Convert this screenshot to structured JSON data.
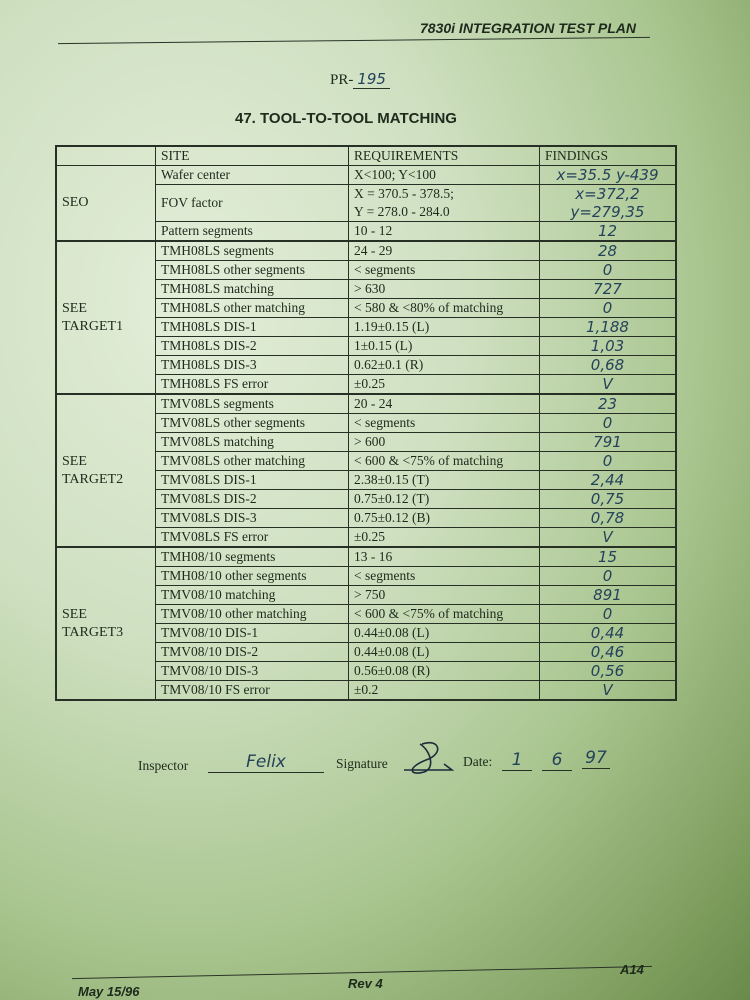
{
  "header": {
    "title": "7830i INTEGRATION TEST PLAN"
  },
  "pr": {
    "prefix": "PR-",
    "number": "195"
  },
  "section_title": "47. TOOL-TO-TOOL MATCHING",
  "table": {
    "columns": [
      "",
      "SITE",
      "REQUIREMENTS",
      "FINDINGS"
    ],
    "groups": [
      {
        "label": "SEO",
        "rows": [
          {
            "site": "Wafer center",
            "req": "X<100; Y<100",
            "find": "x=35.5   y-439"
          },
          {
            "site": "FOV factor",
            "req": "X = 370.5 - 378.5;\nY = 278.0 - 284.0",
            "find": "x=372,2\ny=279,35"
          },
          {
            "site": "Pattern segments",
            "req": "10 - 12",
            "find": "12"
          }
        ]
      },
      {
        "label": "SEE\nTARGET1",
        "rows": [
          {
            "site": "TMH08LS segments",
            "req": "24 - 29",
            "find": "28"
          },
          {
            "site": "TMH08LS other segments",
            "req": "< segments",
            "find": "0"
          },
          {
            "site": "TMH08LS matching",
            "req": "> 630",
            "find": "727"
          },
          {
            "site": "TMH08LS other matching",
            "req": "< 580 & <80% of matching",
            "find": "0"
          },
          {
            "site": "TMH08LS DIS-1",
            "req": "1.19±0.15 (L)",
            "find": "1,188"
          },
          {
            "site": "TMH08LS DIS-2",
            "req": "1±0.15     (L)",
            "find": "1,03"
          },
          {
            "site": "TMH08LS DIS-3",
            "req": "0.62±0.1 (R)",
            "find": "0,68"
          },
          {
            "site": "TMH08LS FS error",
            "req": "±0.25",
            "find": "V"
          }
        ]
      },
      {
        "label": "SEE\nTARGET2",
        "rows": [
          {
            "site": "TMV08LS segments",
            "req": "20 - 24",
            "find": "23"
          },
          {
            "site": "TMV08LS other segments",
            "req": "< segments",
            "find": "0"
          },
          {
            "site": "TMV08LS matching",
            "req": "> 600",
            "find": "791"
          },
          {
            "site": "TMV08LS other matching",
            "req": "< 600 & <75% of matching",
            "find": "0"
          },
          {
            "site": "TMV08LS DIS-1",
            "req": "2.38±0.15 (T)",
            "find": "2,44"
          },
          {
            "site": "TMV08LS DIS-2",
            "req": "0.75±0.12 (T)",
            "find": "0,75"
          },
          {
            "site": "TMV08LS DIS-3",
            "req": "0.75±0.12 (B)",
            "find": "0,78"
          },
          {
            "site": "TMV08LS FS error",
            "req": "±0.25",
            "find": "V"
          }
        ]
      },
      {
        "label": "SEE\nTARGET3",
        "rows": [
          {
            "site": "TMH08/10 segments",
            "req": "13 - 16",
            "find": "15"
          },
          {
            "site": "TMH08/10 other segments",
            "req": "< segments",
            "find": "0"
          },
          {
            "site": "TMV08/10 matching",
            "req": "> 750",
            "find": "891"
          },
          {
            "site": "TMV08/10 other matching",
            "req": "< 600 & <75% of matching",
            "find": "0"
          },
          {
            "site": "TMV08/10 DIS-1",
            "req": "0.44±0.08  (L)",
            "find": "0,44"
          },
          {
            "site": "TMV08/10 DIS-2",
            "req": "0.44±0.08  (L)",
            "find": "0,46"
          },
          {
            "site": "TMV08/10 DIS-3",
            "req": "0.56±0.08  (R)",
            "find": "0,56"
          },
          {
            "site": "TMV08/10 FS error",
            "req": "±0.2",
            "find": "V"
          }
        ]
      }
    ]
  },
  "signoff": {
    "inspector_label": "Inspector",
    "inspector_value": "Felix",
    "signature_label": "Signature",
    "date_label": "Date:",
    "date_day": "1",
    "date_month": "6",
    "date_year": "97"
  },
  "footer": {
    "date": "May 15/96",
    "rev": "Rev 4",
    "page": "A14"
  }
}
